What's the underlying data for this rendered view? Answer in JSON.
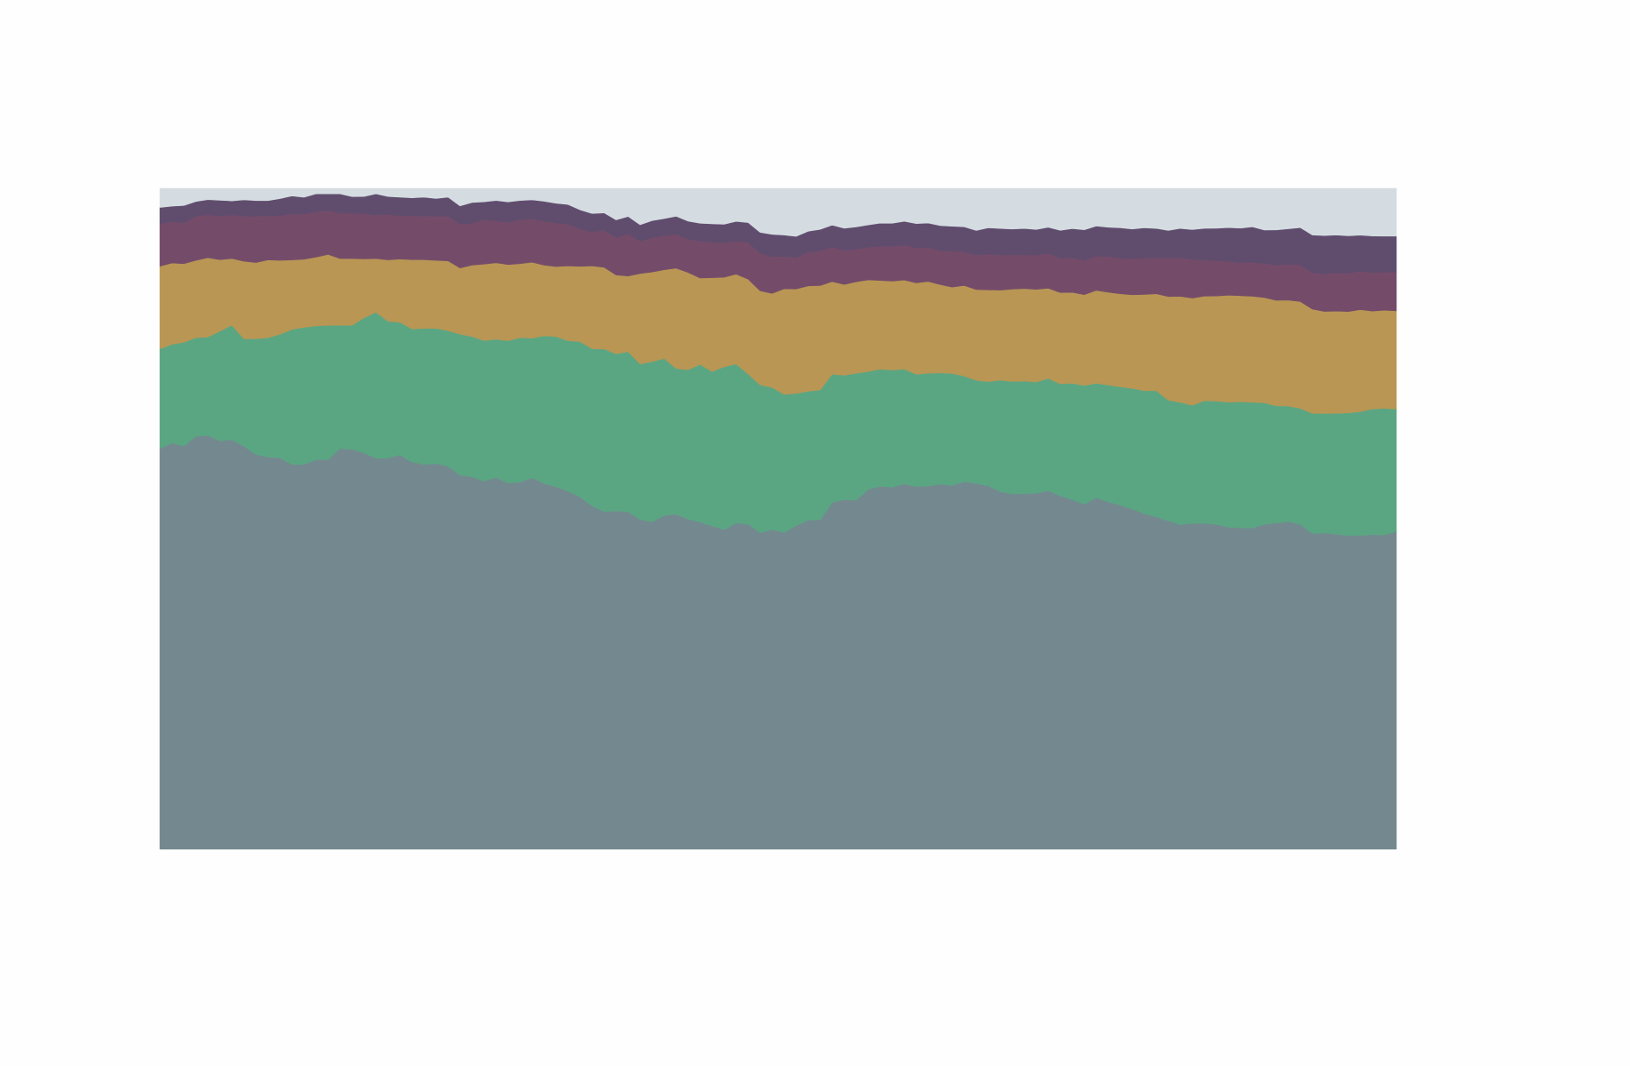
{
  "chart_data": {
    "type": "area",
    "stacked": true,
    "normalized": true,
    "ylim": [
      0,
      100
    ],
    "grid": false,
    "legend": "none",
    "colors": {
      "background": "#d4dce1",
      "plot_bg": "#fefefe"
    },
    "series": [
      {
        "color": "#74898f",
        "values": [
          60.6,
          61.5,
          61.0,
          62.5,
          62.6,
          61.8,
          61.9,
          59.7,
          58.0,
          57.5,
          57.1,
          55.9,
          55.9,
          56.6,
          56.6,
          58.2,
          58.1,
          57.8,
          56.8,
          57.4,
          58.0,
          57.0,
          56.6,
          56.8,
          56.5,
          55.4,
          55.3,
          54.4,
          54.9,
          53.8,
          54.1,
          54.8,
          53.8,
          53.3,
          53.1,
          52.4,
          51.8,
          50.9,
          51.5,
          50.4,
          50.7,
          49.7,
          50.8,
          50.4,
          50.2,
          49.6,
          49.2,
          48.9,
          49.4,
          49.4,
          48.8,
          49.3,
          49.5,
          50.5,
          50.6,
          50.5,
          52.8,
          53.5,
          53.4,
          55.0,
          55.2,
          55.0,
          55.4,
          55.6,
          55.4,
          55.8,
          55.6,
          56.4,
          56.4,
          56.2,
          55.2,
          55.0,
          55.0,
          55.3,
          55.3,
          54.6,
          53.8,
          53.2,
          54.1,
          53.5,
          53.2,
          52.7,
          51.9,
          51.4,
          50.7,
          50.2,
          50.5,
          50.5,
          50.4,
          50.0,
          50.0,
          50.0,
          50.6,
          51.0,
          51.0,
          50.5,
          49.4,
          49.6,
          49.3,
          48.9,
          48.9,
          48.2,
          48.0,
          48.5
        ]
      },
      {
        "color": "#5aa683",
        "values": [
          15.1,
          14.9,
          15.7,
          14.9,
          14.9,
          16.6,
          17.3,
          15.9,
          17.0,
          17.5,
          18.0,
          19.6,
          19.9,
          19.4,
          19.5,
          17.9,
          18.0,
          19.7,
          21.2,
          20.1,
          19.5,
          19.6,
          20.0,
          19.9,
          20.0,
          20.9,
          20.8,
          20.8,
          20.4,
          20.9,
          21.3,
          20.6,
          21.7,
          22.1,
          22.3,
          23.1,
          23.7,
          24.5,
          23.9,
          23.9,
          23.9,
          24.3,
          23.9,
          21.9,
          22.7,
          23.9,
          23.5,
          24.9,
          24.1,
          22.8,
          22.8,
          21.9,
          21.6,
          20.6,
          19.8,
          19.9,
          19.5,
          19.0,
          19.4,
          18.0,
          17.8,
          17.8,
          17.4,
          17.2,
          17.2,
          17.0,
          17.1,
          16.2,
          15.9,
          16.1,
          17.2,
          17.4,
          17.4,
          17.3,
          17.3,
          17.3,
          17.9,
          18.3,
          17.6,
          18.0,
          18.3,
          18.7,
          19.0,
          19.5,
          18.6,
          18.9,
          18.3,
          19.0,
          19.1,
          19.4,
          19.6,
          19.6,
          18.9,
          18.3,
          18.0,
          18.0,
          18.8,
          18.7,
          18.9,
          19.1,
          19.3,
          19.2,
          19.3,
          18.7
        ]
      },
      {
        "color": "#b99654",
        "values": [
          12.5,
          12.3,
          11.9,
          11.7,
          12.0,
          10.8,
          10.1,
          11.5,
          11.2,
          11.4,
          10.8,
          10.1,
          9.9,
          10.0,
          10.3,
          9.7,
          9.7,
          8.6,
          7.8,
          9.0,
          9.3,
          10.2,
          10.1,
          10.0,
          10.3,
          9.8,
          10.6,
          11.3,
          11.3,
          11.2,
          10.9,
          11.2,
          10.4,
          10.3,
          11.1,
          11.2,
          12.5,
          12.3,
          12.0,
          11.3,
          13.9,
          13.6,
          13.5,
          15.1,
          14.8,
          13.1,
          14.3,
          13.7,
          13.6,
          14.4,
          14.5,
          14.5,
          16.5,
          16.3,
          16.2,
          16.0,
          14.1,
          13.9,
          14.0,
          14.0,
          13.5,
          13.5,
          13.5,
          14.0,
          14.0,
          13.5,
          13.2,
          13.9,
          14.0,
          14.2,
          13.9,
          14.3,
          14.3,
          14.4,
          13.9,
          14.1,
          14.0,
          14.0,
          14.3,
          14.3,
          14.4,
          14.5,
          14.9,
          15.0,
          16.0,
          16.4,
          16.6,
          16.2,
          16.3,
          16.6,
          16.5,
          16.5,
          16.4,
          16.5,
          16.5,
          16.6,
          16.3,
          16.0,
          16.0,
          15.8,
          15.9,
          15.0,
          15.0,
          15.0
        ]
      },
      {
        "color": "#744c6a",
        "values": [
          6.4,
          6.3,
          6.2,
          6.7,
          6.5,
          6.6,
          6.6,
          6.7,
          6.8,
          6.5,
          6.5,
          6.7,
          6.6,
          6.6,
          6.4,
          6.6,
          6.6,
          6.6,
          6.3,
          6.7,
          6.3,
          6.5,
          6.4,
          6.5,
          6.6,
          6.5,
          6.2,
          6.6,
          6.2,
          6.2,
          6.5,
          6.4,
          6.5,
          6.4,
          6.2,
          5.6,
          5.1,
          5.6,
          5.7,
          6.3,
          5.0,
          5.2,
          5.2,
          5.1,
          5.1,
          5.6,
          5.4,
          5.3,
          5.0,
          5.6,
          5.8,
          5.7,
          5.1,
          4.9,
          5.2,
          5.3,
          5.3,
          5.2,
          5.0,
          5.0,
          5.2,
          5.3,
          5.3,
          5.4,
          5.2,
          5.2,
          5.5,
          5.2,
          5.3,
          5.5,
          5.4,
          5.3,
          5.2,
          5.3,
          5.4,
          5.3,
          5.3,
          5.3,
          5.3,
          5.5,
          5.5,
          5.6,
          5.6,
          5.6,
          5.9,
          6.0,
          6.0,
          5.6,
          5.5,
          5.3,
          5.1,
          5.3,
          5.3,
          5.5,
          5.6,
          5.7,
          5.7,
          5.9,
          6.0,
          6.0,
          6.0,
          5.9,
          5.8,
          5.9
        ]
      },
      {
        "color": "#604d6e",
        "values": [
          2.5,
          2.3,
          2.6,
          2.2,
          2.3,
          2.4,
          2.1,
          2.4,
          2.3,
          2.2,
          2.5,
          2.6,
          2.4,
          2.6,
          2.4,
          2.8,
          2.4,
          2.5,
          3.1,
          2.6,
          2.8,
          2.6,
          2.8,
          2.6,
          2.8,
          2.7,
          3.1,
          2.6,
          3.0,
          3.0,
          2.8,
          2.8,
          2.9,
          2.9,
          2.9,
          2.8,
          2.8,
          2.6,
          2.7,
          2.6,
          2.5,
          2.6,
          2.6,
          2.7,
          2.7,
          2.7,
          2.8,
          2.8,
          3.0,
          3.0,
          3.2,
          3.4,
          3.3,
          3.3,
          3.2,
          3.3,
          3.3,
          3.4,
          3.4,
          3.4,
          3.5,
          3.5,
          3.6,
          3.7,
          3.7,
          3.8,
          3.8,
          3.8,
          3.8,
          4.1,
          4.1,
          4.0,
          4.1,
          4.0,
          4.0,
          4.3,
          4.5,
          4.7,
          4.6,
          4.5,
          4.7,
          4.6,
          4.7,
          4.5,
          4.3,
          4.5,
          4.6,
          4.9,
          5.0,
          5.2,
          5.4,
          5.5,
          5.2,
          5.5,
          5.5,
          5.8,
          5.9,
          6.0,
          5.9,
          5.8,
          5.6,
          5.6,
          5.5,
          5.5
        ]
      },
      {
        "color": "#d4dce1",
        "values": [
          2.9,
          2.7,
          2.6,
          2.0,
          1.7,
          1.8,
          1.9,
          1.7,
          1.8,
          1.8,
          1.5,
          1.1,
          1.3,
          0.8,
          0.8,
          0.8,
          1.2,
          1.2,
          0.8,
          1.2,
          1.3,
          1.4,
          1.3,
          1.5,
          1.3,
          2.6,
          2.1,
          2.0,
          1.8,
          2.0,
          1.8,
          1.7,
          1.9,
          2.2,
          2.4,
          3.2,
          3.8,
          3.7,
          4.8,
          4.2,
          5.6,
          4.9,
          4.6,
          4.2,
          5.0,
          5.3,
          5.4,
          5.5,
          5.0,
          5.2,
          6.8,
          7.1,
          7.3,
          7.5,
          6.6,
          6.3,
          5.6,
          6.1,
          5.9,
          5.6,
          5.3,
          5.3,
          5.0,
          5.4,
          5.3,
          5.7,
          5.8,
          5.9,
          6.5,
          6.1,
          6.2,
          6.3,
          6.2,
          6.4,
          6.0,
          6.5,
          6.2,
          6.4,
          5.8,
          6.0,
          6.1,
          6.3,
          6.1,
          6.2,
          6.5,
          6.2,
          6.4,
          6.2,
          6.2,
          6.1,
          6.2,
          6.0,
          6.5,
          6.5,
          6.3,
          6.1,
          7.3,
          7.4,
          7.3,
          7.4,
          7.3,
          7.3,
          7.3,
          7.3
        ]
      }
    ]
  }
}
